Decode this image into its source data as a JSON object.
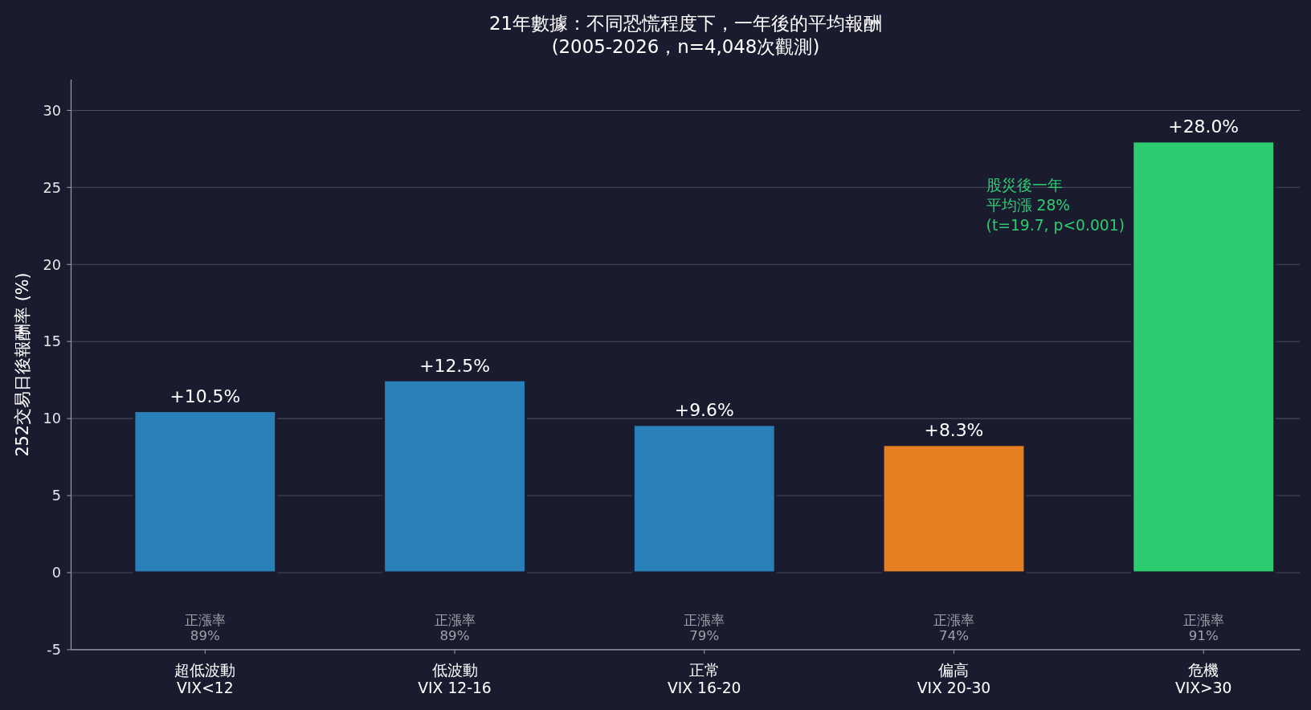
{
  "chart_data": {
    "type": "bar",
    "title": "21年數據：不同恐慌程度下，一年後的平均報酬",
    "subtitle": "(2005-2026，n=4,048次觀測)",
    "ylabel": "252交易日後報酬率 (%)",
    "categories": [
      "超低波動\nVIX<12",
      "低波動\nVIX 12-16",
      "正常\nVIX 16-20",
      "偏高\nVIX 20-30",
      "危機\nVIX>30"
    ],
    "values": [
      10.5,
      12.5,
      9.6,
      8.3,
      28.0
    ],
    "colors": [
      "#2980b9",
      "#2980b9",
      "#2980b9",
      "#e67e22",
      "#2ecc71"
    ],
    "value_labels": [
      "+10.5%",
      "+12.5%",
      "+9.6%",
      "+8.3%",
      "+28.0%"
    ],
    "ylim": [
      -5,
      32
    ],
    "yticks": [
      -5,
      0,
      5,
      10,
      15,
      20,
      25,
      30
    ],
    "grid": "y",
    "annotations": [
      "正漲率\n89%",
      "正漲率\n89%",
      "正漲率\n79%",
      "正漲率\n74%",
      "正漲率\n91%",
      "股災後一年",
      "平均漲 28%",
      "(t=19.7, p<0.001)"
    ]
  }
}
